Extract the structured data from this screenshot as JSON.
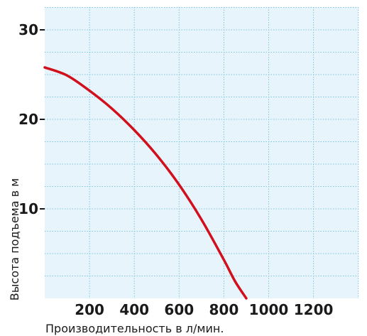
{
  "chart_data": {
    "type": "line",
    "xlabel": "Производительность в л/мин.",
    "ylabel": "Высота подъема в м",
    "xlim": [
      0,
      1400
    ],
    "ylim": [
      0,
      32
    ],
    "x_ticks": [
      200,
      400,
      600,
      800,
      1000,
      1200
    ],
    "x_tick_labels": [
      "200",
      "400",
      "600",
      "800",
      "1000",
      "1200"
    ],
    "y_ticks": [
      10,
      20,
      30
    ],
    "y_tick_labels": [
      "10",
      "20",
      "30"
    ],
    "x_grid_step": 200,
    "y_grid_step": 2.5,
    "grid": true,
    "background_color": "#e8f4fb",
    "grid_color": "#7fc4df",
    "line_color": "#d0101c",
    "series": [
      {
        "x": [
          0,
          100,
          200,
          300,
          400,
          500,
          600,
          700,
          800,
          850,
          900
        ],
        "y": [
          25.8,
          24.9,
          23.2,
          21.2,
          18.8,
          16.0,
          12.7,
          8.8,
          4.3,
          1.9,
          0
        ]
      }
    ]
  }
}
